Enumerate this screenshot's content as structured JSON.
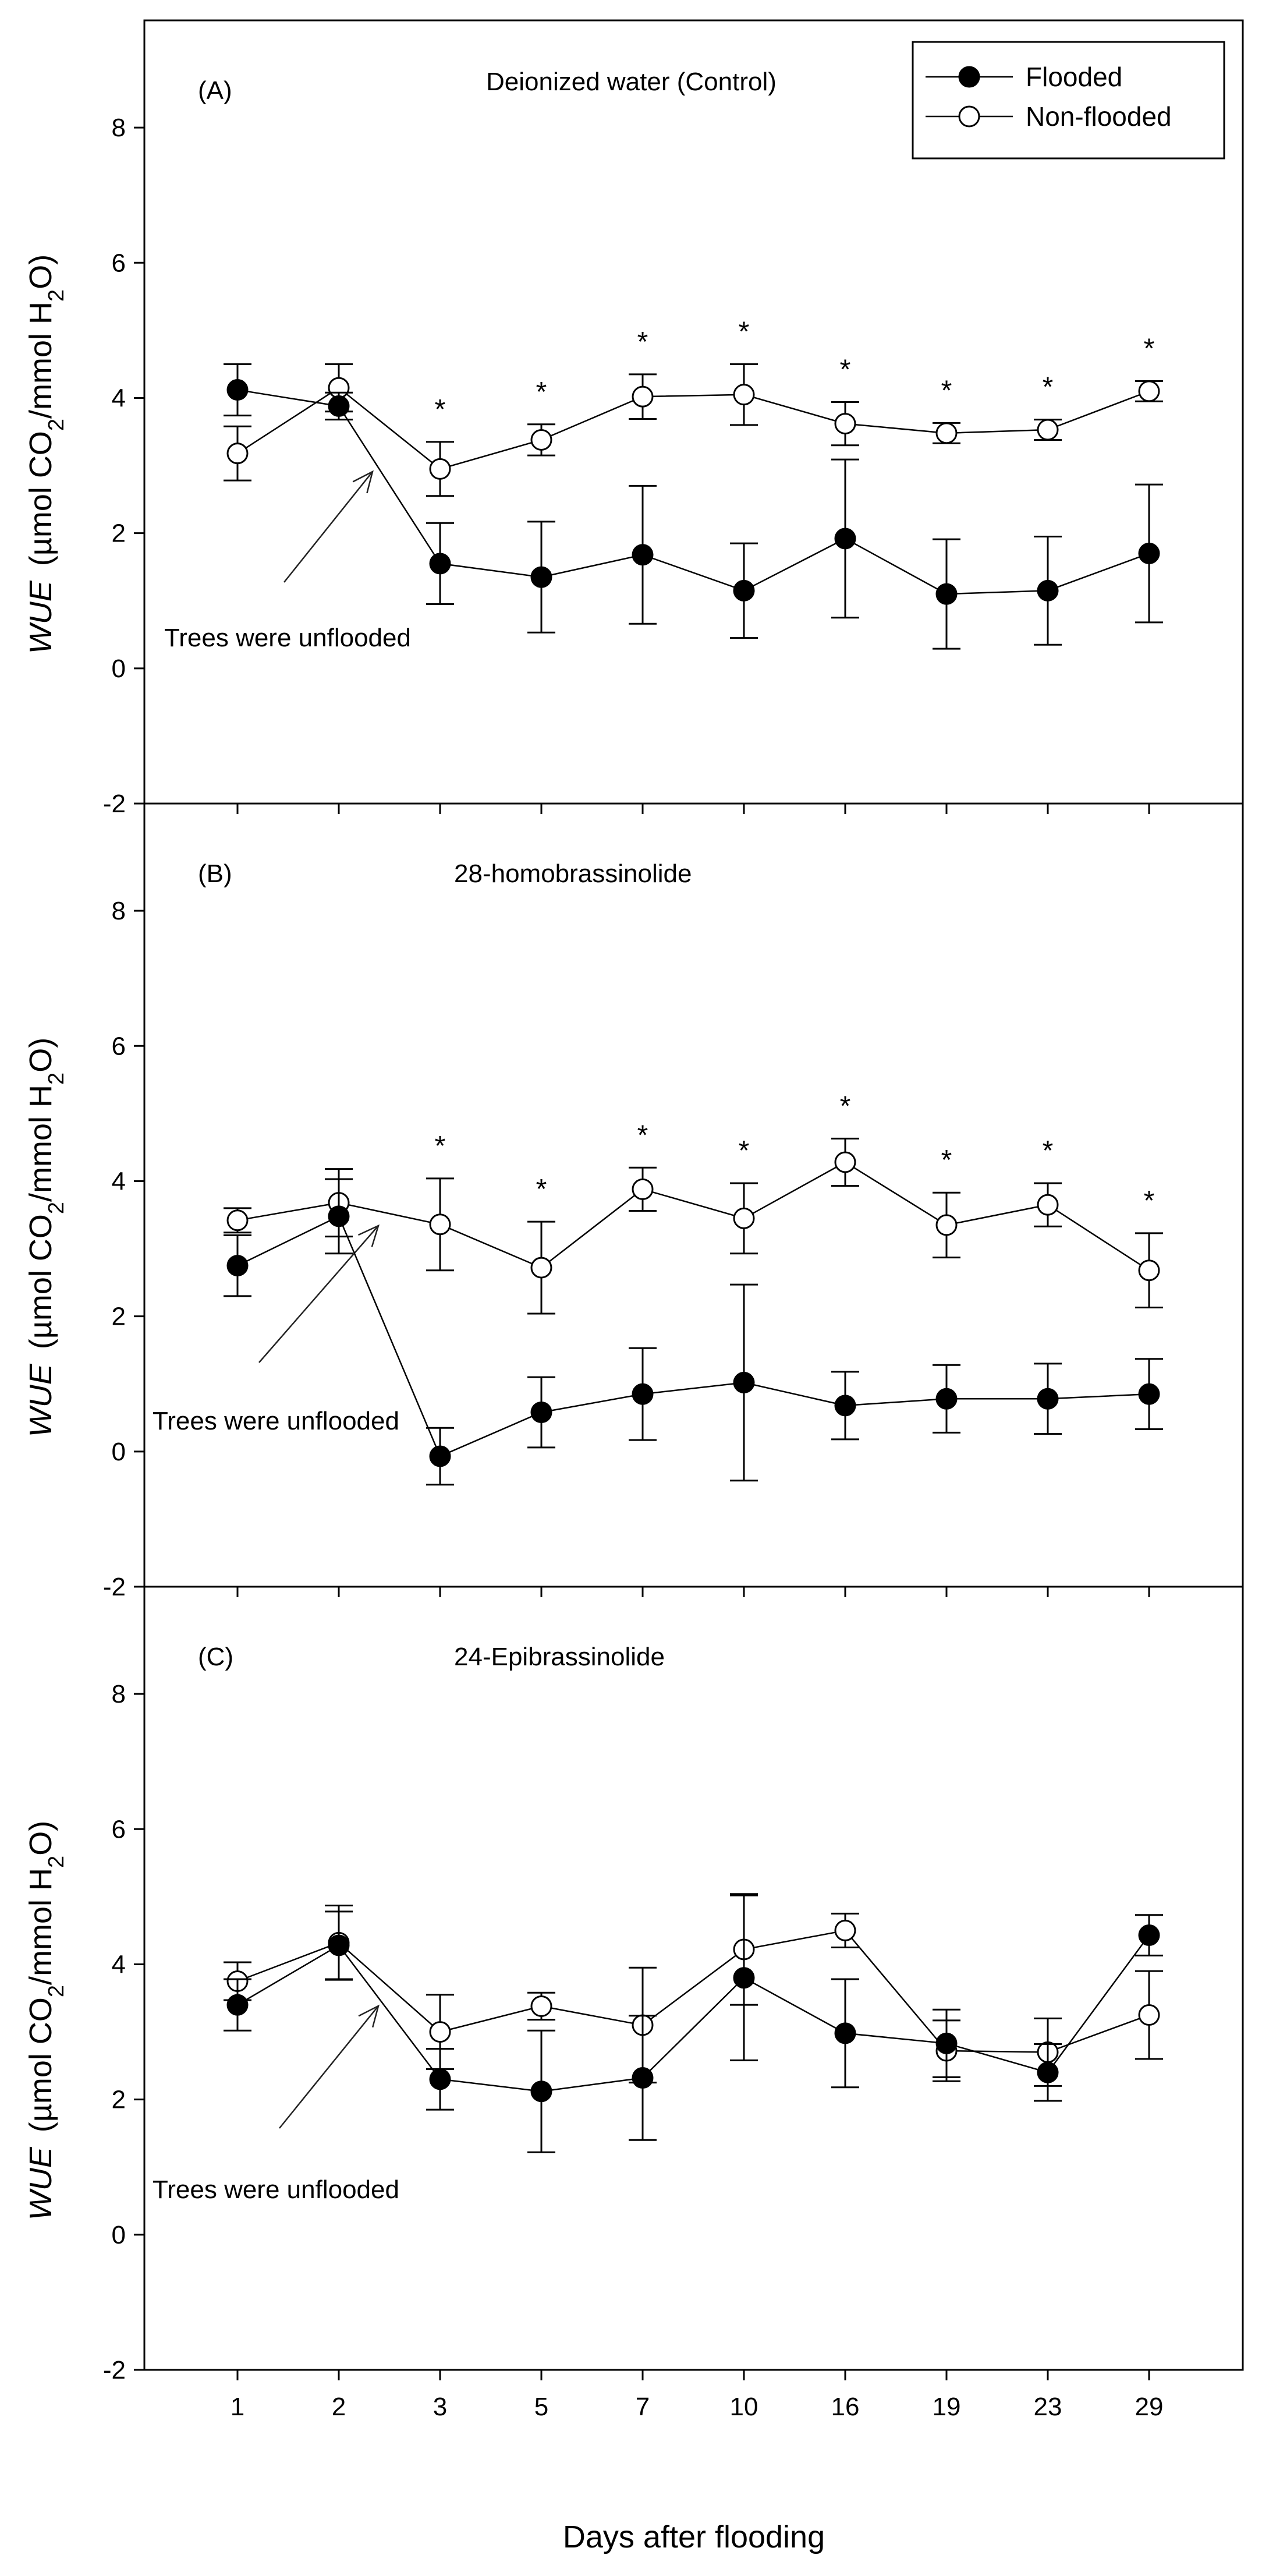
{
  "chart_data": {
    "type": "line",
    "categories": [
      "1",
      "2",
      "3",
      "5",
      "7",
      "10",
      "16",
      "19",
      "23",
      "29"
    ],
    "xlabel": "Days after flooding",
    "ylabel_italic": "WUE",
    "ylabel_unit": "(µmol CO",
    "ylabel_sub1": "2",
    "ylabel_mid": "/mmol H",
    "ylabel_sub2": "2",
    "ylabel_end": "O)",
    "ylim": [
      -2,
      9.5
    ],
    "yticks": [
      "-2",
      "0",
      "2",
      "4",
      "6",
      "8"
    ],
    "legend": {
      "position": "top-right",
      "entries": [
        {
          "name": "Flooded",
          "marker": "filled-circle"
        },
        {
          "name": "Non-flooded",
          "marker": "open-circle"
        }
      ]
    },
    "annotation_text": "Trees were unflooded",
    "panels": [
      {
        "label": "(A)",
        "title": "Deionized water (Control)",
        "series": [
          {
            "name": "Flooded",
            "values": [
              4.12,
              3.88,
              1.55,
              1.35,
              1.68,
              1.15,
              1.92,
              1.1,
              1.15,
              1.7
            ],
            "errors": [
              0.38,
              0.2,
              0.6,
              0.82,
              1.02,
              0.7,
              1.17,
              0.81,
              0.8,
              1.02
            ]
          },
          {
            "name": "Non-flooded",
            "values": [
              3.18,
              4.15,
              2.95,
              3.38,
              4.02,
              4.05,
              3.62,
              3.48,
              3.53,
              4.1
            ],
            "errors": [
              0.4,
              0.35,
              0.4,
              0.23,
              0.33,
              0.45,
              0.32,
              0.15,
              0.15,
              0.15
            ]
          }
        ],
        "significance": [
          "",
          "",
          "*",
          "*",
          "*",
          "*",
          "*",
          "*",
          "*",
          "*"
        ]
      },
      {
        "label": "(B)",
        "title": "28-homobrassinolide",
        "series": [
          {
            "name": "Flooded",
            "values": [
              2.75,
              3.48,
              -0.07,
              0.58,
              0.85,
              1.02,
              0.68,
              0.78,
              0.78,
              0.85
            ],
            "errors": [
              0.45,
              0.55,
              0.42,
              0.52,
              0.68,
              1.45,
              0.5,
              0.5,
              0.52,
              0.52
            ]
          },
          {
            "name": "Non-flooded",
            "values": [
              3.42,
              3.68,
              3.36,
              2.72,
              3.88,
              3.45,
              4.28,
              3.35,
              3.65,
              2.68
            ],
            "errors": [
              0.18,
              0.5,
              0.68,
              0.68,
              0.32,
              0.52,
              0.35,
              0.48,
              0.32,
              0.55
            ]
          }
        ],
        "significance": [
          "",
          "",
          "*",
          "*",
          "*",
          "*",
          "*",
          "*",
          "*",
          "*"
        ]
      },
      {
        "label": "(C)",
        "title": "24-Epibrassinolide",
        "series": [
          {
            "name": "Flooded",
            "values": [
              3.4,
              4.28,
              2.3,
              2.12,
              2.32,
              3.8,
              2.98,
              2.83,
              2.4,
              4.43
            ],
            "errors": [
              0.38,
              0.5,
              0.45,
              0.9,
              0.92,
              1.22,
              0.8,
              0.5,
              0.42,
              0.3
            ]
          },
          {
            "name": "Non-flooded",
            "values": [
              3.75,
              4.32,
              3.0,
              3.38,
              3.1,
              4.22,
              4.5,
              2.72,
              2.7,
              3.25
            ],
            "errors": [
              0.28,
              0.55,
              0.55,
              0.2,
              0.85,
              0.82,
              0.25,
              0.45,
              0.5,
              0.65
            ]
          }
        ],
        "significance": [
          "",
          "",
          "",
          "",
          "",
          "",
          "",
          "",
          "",
          ""
        ]
      }
    ]
  }
}
